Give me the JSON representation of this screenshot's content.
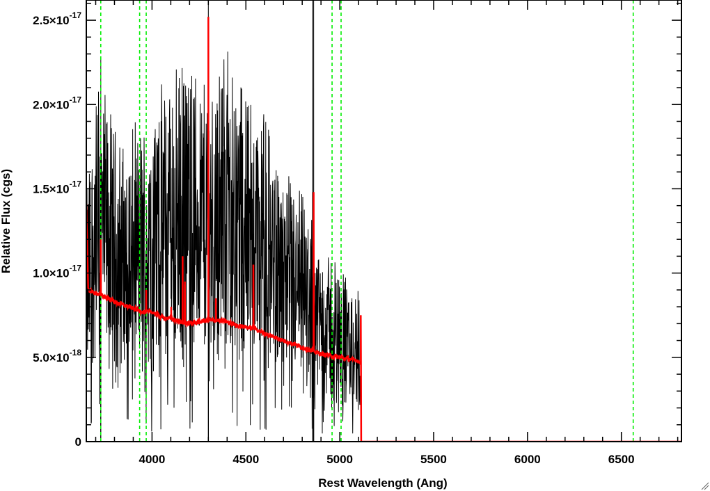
{
  "chart_data": {
    "type": "line",
    "title": "",
    "xlabel": "Rest Wavelength (Ang)",
    "ylabel": "Relative Flux (cgs)",
    "xlim": [
      3650,
      6820
    ],
    "ylim": [
      0,
      2.62e-17
    ],
    "x_ticks": [
      {
        "value": 4000,
        "label": "4000"
      },
      {
        "value": 4500,
        "label": "4500"
      },
      {
        "value": 5000,
        "label": "5000"
      },
      {
        "value": 5500,
        "label": "5500"
      },
      {
        "value": 6000,
        "label": "6000"
      },
      {
        "value": 6500,
        "label": "6500"
      }
    ],
    "x_minor_step": 100,
    "y_ticks": [
      {
        "value": 0,
        "mantissa": "0",
        "exponent": ""
      },
      {
        "value": 5e-18,
        "mantissa": "5.0×10",
        "exponent": "-18"
      },
      {
        "value": 1e-17,
        "mantissa": "1.0×10",
        "exponent": "-17"
      },
      {
        "value": 1.5e-17,
        "mantissa": "1.5×10",
        "exponent": "-17"
      },
      {
        "value": 2e-17,
        "mantissa": "2.0×10",
        "exponent": "-17"
      },
      {
        "value": 2.5e-17,
        "mantissa": "2.5×10",
        "exponent": "-17"
      }
    ],
    "y_minor_step": 1e-18,
    "grid": false,
    "reference_lines": [
      3727,
      3934,
      3969,
      4959,
      5007,
      6563
    ],
    "reference_line_color": "#00ee00",
    "series": [
      {
        "color": "#000000",
        "style": "noisy spectrum",
        "x": [
          3650,
          3680,
          3700,
          3720,
          3740,
          3760,
          3780,
          3800,
          3850,
          3900,
          3950,
          4000,
          4050,
          4100,
          4150,
          4200,
          4250,
          4300,
          4350,
          4400,
          4450,
          4500,
          4550,
          4600,
          4650,
          4700,
          4750,
          4800,
          4850,
          4900,
          4950,
          5000,
          5050,
          5100,
          5115
        ],
        "y": [
          9e-18,
          1.1e-17,
          1.2e-17,
          1.3e-17,
          1.25e-17,
          1.2e-17,
          1.15e-17,
          1.1e-17,
          1.05e-17,
          1.1e-17,
          1.12e-17,
          1.15e-17,
          1.25e-17,
          1.3e-17,
          1.32e-17,
          1.35e-17,
          1.3e-17,
          1.3e-17,
          1.35e-17,
          1.4e-17,
          1.38e-17,
          1.3e-17,
          1.25e-17,
          1.15e-17,
          1.05e-17,
          9.5e-18,
          9e-18,
          8.5e-18,
          8e-18,
          7e-18,
          6.5e-18,
          6e-18,
          5.5e-18,
          5e-18,
          4.5e-18
        ]
      },
      {
        "color": "#ff0000",
        "style": "model",
        "x": [
          3650,
          3660,
          3700,
          3750,
          3800,
          3850,
          3900,
          3950,
          4000,
          4050,
          4100,
          4150,
          4200,
          4250,
          4300,
          4350,
          4400,
          4450,
          4500,
          4550,
          4600,
          4650,
          4700,
          4750,
          4800,
          4850,
          4900,
          4950,
          5000,
          5050,
          5100,
          5112,
          5114,
          6820
        ],
        "y": [
          1.4e-17,
          9e-18,
          8.8e-18,
          8.6e-18,
          8.3e-18,
          8.1e-18,
          7.9e-18,
          7.7e-18,
          7.7e-18,
          7.4e-18,
          7.3e-18,
          7.1e-18,
          7e-18,
          7.1e-18,
          7.2e-18,
          7.2e-18,
          7.1e-18,
          6.9e-18,
          6.8e-18,
          6.7e-18,
          6.4e-18,
          6.2e-18,
          6e-18,
          5.8e-18,
          5.6e-18,
          5.4e-18,
          5.2e-18,
          5.1e-18,
          5e-18,
          4.9e-18,
          4.8e-18,
          4.6e-18,
          0,
          0
        ]
      }
    ],
    "emission_lines": [
      {
        "x": 3727,
        "peak": 1.2e-17
      },
      {
        "x": 3969,
        "peak": 9e-18
      },
      {
        "x": 4102,
        "peak": 8e-18
      },
      {
        "x": 4163,
        "peak": 1.1e-17
      },
      {
        "x": 4175,
        "peak": 9.5e-18
      },
      {
        "x": 4300,
        "peak": 2.52e-17
      },
      {
        "x": 4340,
        "peak": 8.5e-18
      },
      {
        "x": 4540,
        "peak": 1.05e-17
      },
      {
        "x": 4861,
        "peak": 1.48e-17
      },
      {
        "x": 5112,
        "peak": 7.5e-18
      }
    ]
  }
}
